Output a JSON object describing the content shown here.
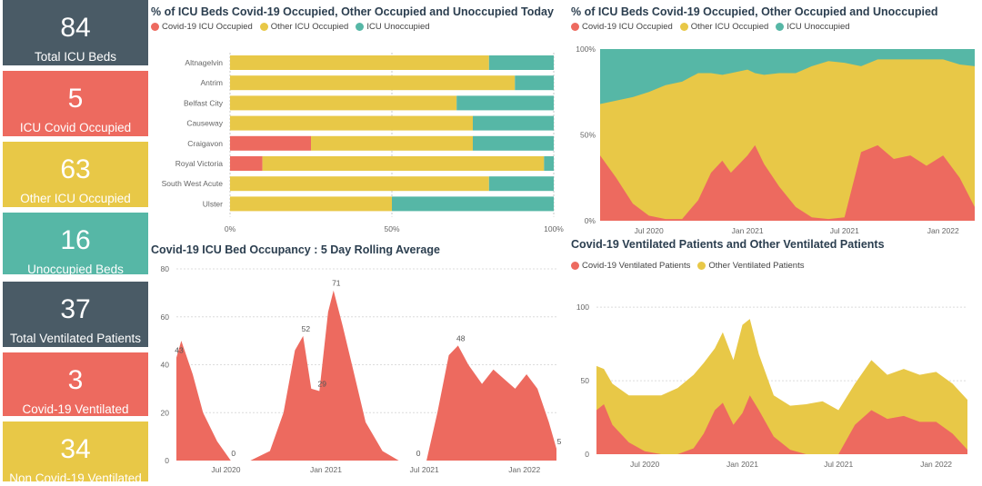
{
  "colors": {
    "covid": "#ed6a5f",
    "other": "#e8c847",
    "unoccupied": "#56b7a6",
    "dark": "#4a5b66"
  },
  "kpis": [
    {
      "value": "84",
      "label": "Total ICU Beds",
      "color": "dark"
    },
    {
      "value": "5",
      "label": "ICU Covid Occupied",
      "color": "red"
    },
    {
      "value": "63",
      "label": "Other ICU Occupied",
      "color": "yellow"
    },
    {
      "value": "16",
      "label": "Unoccupied Beds",
      "color": "teal"
    },
    {
      "value": "37",
      "label": "Total Ventilated Patients",
      "color": "dark"
    },
    {
      "value": "3",
      "label": "Covid-19 Ventilated",
      "color": "red"
    },
    {
      "value": "34",
      "label": "Non Covid-19 Ventilated",
      "color": "yellow"
    }
  ],
  "chart_data": [
    {
      "type": "bar",
      "orientation": "horizontal-stacked-100",
      "title": "% of ICU Beds Covid-19 Occupied, Other Occupied and Unoccupied Today",
      "legend": [
        "Covid-19 ICU Occupied",
        "Other ICU Occupied",
        "ICU Unoccupied"
      ],
      "legend_position": "top-left",
      "categories": [
        "Altnagelvin",
        "Antrim",
        "Belfast City",
        "Causeway",
        "Craigavon",
        "Royal Victoria",
        "South West Acute",
        "Ulster"
      ],
      "series": [
        {
          "name": "Covid-19 ICU Occupied",
          "values": [
            0,
            0,
            0,
            0,
            25,
            10,
            0,
            0
          ]
        },
        {
          "name": "Other ICU Occupied",
          "values": [
            80,
            88,
            70,
            75,
            50,
            87,
            80,
            50
          ]
        },
        {
          "name": "ICU Unoccupied",
          "values": [
            20,
            12,
            30,
            25,
            25,
            3,
            20,
            50
          ]
        }
      ],
      "x_ticks": [
        "0%",
        "50%",
        "100%"
      ],
      "xlim": [
        0,
        100
      ]
    },
    {
      "type": "area",
      "title": "% of ICU Beds Covid-19 Occupied, Other Occupied and Unoccupied",
      "legend": [
        "Covid-19 ICU Occupied",
        "Other ICU Occupied",
        "ICU Unoccupied"
      ],
      "legend_position": "top-left",
      "x": [
        "2020-04-01",
        "2020-05-01",
        "2020-06-01",
        "2020-07-01",
        "2020-08-01",
        "2020-09-01",
        "2020-10-01",
        "2020-10-25",
        "2020-11-15",
        "2020-12-01",
        "2021-01-01",
        "2021-01-15",
        "2021-02-01",
        "2021-03-01",
        "2021-04-01",
        "2021-05-01",
        "2021-06-01",
        "2021-07-01",
        "2021-08-01",
        "2021-09-01",
        "2021-10-01",
        "2021-11-01",
        "2021-12-01",
        "2022-01-01",
        "2022-02-01",
        "2022-03-01"
      ],
      "series": [
        {
          "name": "Covid-19 ICU Occupied",
          "values": [
            38,
            25,
            10,
            3,
            1,
            1,
            12,
            28,
            35,
            28,
            38,
            44,
            33,
            20,
            8,
            2,
            1,
            2,
            40,
            44,
            36,
            38,
            32,
            38,
            25,
            8
          ]
        },
        {
          "name": "Other ICU Occupied",
          "values": [
            30,
            45,
            62,
            72,
            78,
            80,
            74,
            58,
            50,
            58,
            50,
            42,
            52,
            66,
            78,
            88,
            92,
            90,
            50,
            50,
            58,
            56,
            62,
            56,
            66,
            82
          ]
        }
      ],
      "x_ticks": [
        "Jul 2020",
        "Jan 2021",
        "Jul 2021",
        "Jan 2022"
      ],
      "y_ticks": [
        "0%",
        "50%",
        "100%"
      ],
      "ylim": [
        0,
        100
      ],
      "stacked_percent": true
    },
    {
      "type": "area",
      "title": "Covid-19 ICU Bed Occupancy : 5 Day Rolling Average",
      "x": [
        "2020-04-01",
        "2020-04-10",
        "2020-05-01",
        "2020-05-20",
        "2020-06-15",
        "2020-07-10",
        "2020-08-15",
        "2020-09-20",
        "2020-10-15",
        "2020-11-05",
        "2020-11-20",
        "2020-12-05",
        "2020-12-20",
        "2021-01-05",
        "2021-01-15",
        "2021-02-01",
        "2021-02-20",
        "2021-03-15",
        "2021-04-15",
        "2021-05-15",
        "2021-06-15",
        "2021-07-05",
        "2021-07-25",
        "2021-08-15",
        "2021-09-01",
        "2021-09-20",
        "2021-10-15",
        "2021-11-05",
        "2021-11-25",
        "2021-12-15",
        "2022-01-05",
        "2022-01-25",
        "2022-02-15",
        "2022-03-01"
      ],
      "y": [
        43,
        50,
        36,
        20,
        8,
        0,
        0,
        4,
        20,
        46,
        52,
        30,
        29,
        62,
        71,
        56,
        38,
        16,
        4,
        0,
        0,
        0,
        20,
        44,
        48,
        40,
        32,
        38,
        34,
        30,
        36,
        30,
        16,
        5
      ],
      "data_labels": [
        {
          "x": "2020-04-01",
          "label": "43"
        },
        {
          "x": "2020-07-10",
          "label": "0"
        },
        {
          "x": "2020-11-20",
          "label": "52"
        },
        {
          "x": "2020-12-20",
          "label": "29"
        },
        {
          "x": "2021-01-15",
          "label": "71"
        },
        {
          "x": "2021-06-15",
          "label": "0"
        },
        {
          "x": "2021-09-01",
          "label": "48"
        },
        {
          "x": "2022-03-01",
          "label": "5"
        }
      ],
      "x_ticks": [
        "Jul 2020",
        "Jan 2021",
        "Jul 2021",
        "Jan 2022"
      ],
      "y_ticks": [
        "0",
        "20",
        "40",
        "60",
        "80"
      ],
      "ylim": [
        0,
        80
      ]
    },
    {
      "type": "area",
      "title": "Covid-19 Ventilated Patients and Other Ventilated Patients",
      "legend": [
        "Covid-19 Ventilated Patients",
        "Other Ventilated Patients"
      ],
      "legend_position": "top-left",
      "x": [
        "2020-04-01",
        "2020-04-15",
        "2020-05-01",
        "2020-06-01",
        "2020-07-01",
        "2020-08-01",
        "2020-09-01",
        "2020-10-01",
        "2020-10-20",
        "2020-11-10",
        "2020-11-25",
        "2020-12-15",
        "2021-01-01",
        "2021-01-15",
        "2021-02-01",
        "2021-03-01",
        "2021-04-01",
        "2021-05-01",
        "2021-06-01",
        "2021-07-01",
        "2021-08-01",
        "2021-09-01",
        "2021-10-01",
        "2021-11-01",
        "2021-12-01",
        "2022-01-01",
        "2022-02-01",
        "2022-03-01"
      ],
      "series": [
        {
          "name": "Covid-19 Ventilated Patients",
          "values": [
            30,
            34,
            20,
            8,
            2,
            0,
            0,
            4,
            14,
            30,
            35,
            20,
            28,
            40,
            30,
            12,
            3,
            0,
            0,
            0,
            20,
            30,
            24,
            26,
            22,
            22,
            14,
            3
          ]
        },
        {
          "name": "Other Ventilated Patients",
          "values": [
            30,
            24,
            28,
            32,
            38,
            40,
            45,
            50,
            48,
            42,
            48,
            44,
            60,
            52,
            38,
            28,
            30,
            34,
            36,
            30,
            28,
            34,
            30,
            32,
            32,
            34,
            34,
            34
          ]
        }
      ],
      "x_ticks": [
        "Jul 2020",
        "Jan 2021",
        "Jul 2021",
        "Jan 2022"
      ],
      "y_ticks": [
        "0",
        "50",
        "100"
      ],
      "ylim": [
        0,
        110
      ],
      "stacked": true
    }
  ]
}
